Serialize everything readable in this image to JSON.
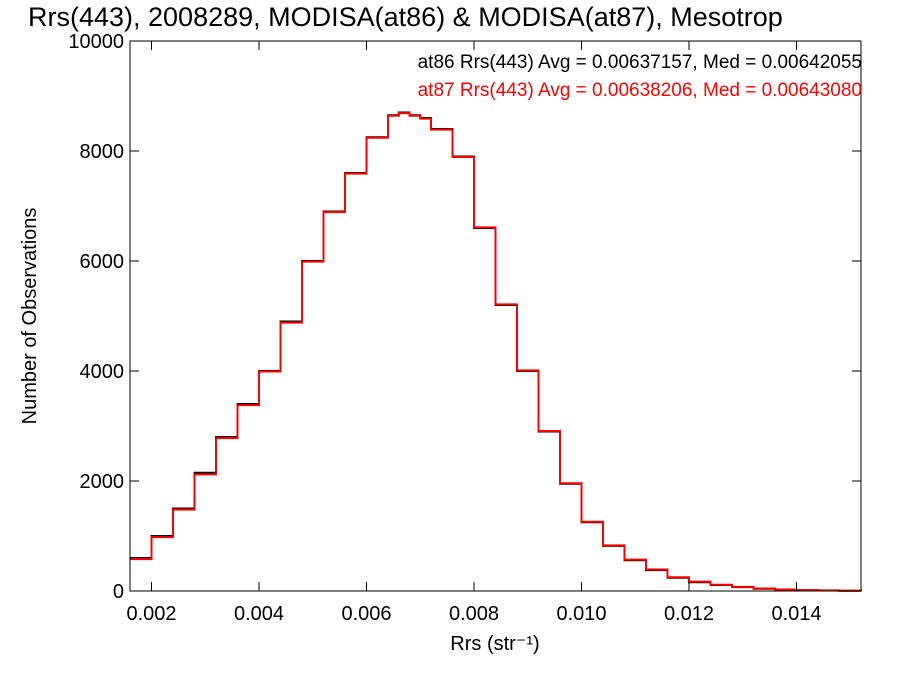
{
  "chart_data": {
    "type": "line",
    "title": "Rrs(443), 2008289, MODISA(at86) & MODISA(at87), Mesotrop",
    "xlabel": "Rrs (str⁻¹)",
    "ylabel": "Number of Observations",
    "xlim": [
      0.0016,
      0.0152
    ],
    "ylim": [
      0,
      10000
    ],
    "x_ticks": [
      0.002,
      0.004,
      0.006,
      0.008,
      0.01,
      0.012,
      0.014
    ],
    "x_tick_labels": [
      "0.002",
      "0.004",
      "0.006",
      "0.008",
      "0.010",
      "0.012",
      "0.014"
    ],
    "y_ticks": [
      0,
      2000,
      4000,
      6000,
      8000,
      10000
    ],
    "y_tick_labels": [
      "0",
      "2000",
      "4000",
      "6000",
      "8000",
      "10000"
    ],
    "grid": false,
    "legend_position": "top-right",
    "annotations": [
      {
        "text": "at86 Rrs(443) Avg = 0.00637157, Med = 0.00642055",
        "color": "#000000"
      },
      {
        "text": "at87 Rrs(443) Avg = 0.00638206, Med = 0.00643080",
        "color": "#ff0000"
      }
    ],
    "x": [
      0.0016,
      0.002,
      0.0024,
      0.0028,
      0.0032,
      0.0036,
      0.004,
      0.0044,
      0.0048,
      0.0052,
      0.0056,
      0.006,
      0.0064,
      0.0066,
      0.0068,
      0.007,
      0.0072,
      0.0076,
      0.008,
      0.0084,
      0.0088,
      0.0092,
      0.0096,
      0.01,
      0.0104,
      0.0108,
      0.0112,
      0.0116,
      0.012,
      0.0124,
      0.0128,
      0.0132,
      0.0136,
      0.014,
      0.0144,
      0.0148,
      0.0152
    ],
    "series": [
      {
        "name": "at86",
        "color": "#000000",
        "values": [
          600,
          1000,
          1500,
          2150,
          2800,
          3400,
          4000,
          4900,
          6000,
          6900,
          7600,
          8250,
          8650,
          8700,
          8650,
          8600,
          8400,
          7900,
          6600,
          5200,
          4000,
          2900,
          1950,
          1250,
          820,
          560,
          380,
          240,
          160,
          110,
          70,
          40,
          25,
          15,
          10,
          5,
          0
        ]
      },
      {
        "name": "at87",
        "color": "#ff0000",
        "values": [
          580,
          980,
          1480,
          2120,
          2780,
          3380,
          3990,
          4880,
          5990,
          6890,
          7590,
          8240,
          8640,
          8690,
          8640,
          8590,
          8390,
          7890,
          6610,
          5210,
          4010,
          2910,
          1960,
          1260,
          830,
          570,
          390,
          250,
          170,
          115,
          75,
          45,
          28,
          17,
          11,
          6,
          0
        ]
      }
    ]
  }
}
